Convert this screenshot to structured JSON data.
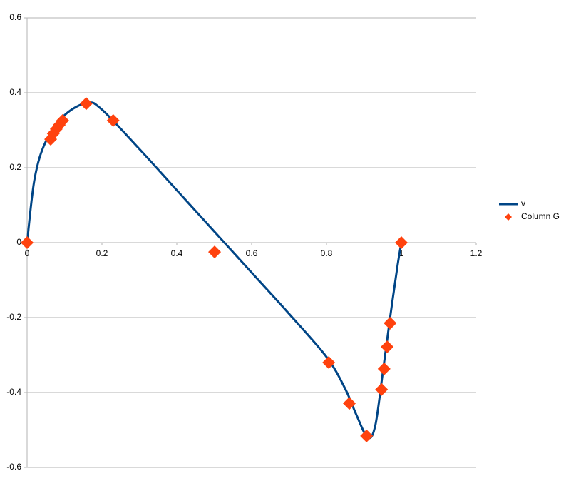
{
  "chart_data": {
    "type": "scatter",
    "series": [
      {
        "name": "v",
        "type": "line",
        "color": "#004586",
        "x": [
          0,
          0.02,
          0.05,
          0.1,
          0.16,
          0.2,
          0.3,
          0.4,
          0.5,
          0.6,
          0.7,
          0.8,
          0.85,
          0.88,
          0.91,
          0.93,
          0.95,
          0.97,
          0.99,
          1.0
        ],
        "values": [
          0,
          0.17,
          0.27,
          0.34,
          0.373,
          0.355,
          0.25,
          0.14,
          0.03,
          -0.08,
          -0.19,
          -0.305,
          -0.39,
          -0.46,
          -0.52,
          -0.49,
          -0.35,
          -0.2,
          -0.06,
          0
        ]
      },
      {
        "name": "Column G",
        "type": "scatter",
        "color": "#ff420e",
        "x": [
          0,
          0.063,
          0.07,
          0.078,
          0.086,
          0.095,
          0.158,
          0.23,
          0.501,
          0.806,
          0.861,
          0.907,
          0.947,
          0.954,
          0.962,
          0.97,
          1.0
        ],
        "values": [
          0,
          0.276,
          0.291,
          0.303,
          0.314,
          0.326,
          0.371,
          0.326,
          -0.025,
          -0.32,
          -0.429,
          -0.516,
          -0.392,
          -0.337,
          -0.278,
          -0.215,
          0
        ]
      }
    ],
    "xlim": [
      0,
      1.2
    ],
    "xticks": [
      0,
      0.2,
      0.4,
      0.6,
      0.8,
      1,
      1.2
    ],
    "ylim": [
      -0.6,
      0.6
    ],
    "yticks": [
      -0.6,
      -0.4,
      -0.2,
      0,
      0.2,
      0.4,
      0.6
    ],
    "grid": true,
    "legend": "right"
  }
}
